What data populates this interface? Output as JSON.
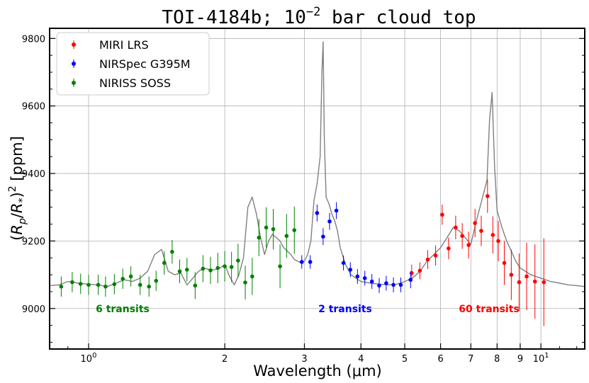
{
  "chart_data": {
    "type": "scatter",
    "title": "TOI-4184b; 10^-2 bar cloud top",
    "title_main": "TOI-4184b; 10",
    "title_exp": "−2",
    "title_tail": " bar cloud top",
    "xlabel": "Wavelength (μm)",
    "ylabel": "(Rp/R*)^2 [ppm]",
    "x_scale": "log",
    "xlim": [
      0.82,
      12.5
    ],
    "ylim": [
      8880,
      9830
    ],
    "x_ticks": [
      {
        "value": 1,
        "label": "10",
        "exp": "0"
      },
      {
        "value": 2,
        "label": "2"
      },
      {
        "value": 3,
        "label": "3"
      },
      {
        "value": 4,
        "label": "4"
      },
      {
        "value": 5,
        "label": "5"
      },
      {
        "value": 6,
        "label": "6"
      },
      {
        "value": 7,
        "label": "7"
      },
      {
        "value": 8,
        "label": "8"
      },
      {
        "value": 9,
        "label": "9"
      },
      {
        "value": 10,
        "label": "10",
        "exp": "1"
      }
    ],
    "y_ticks": [
      9000,
      9200,
      9400,
      9600,
      9800
    ],
    "grid": true,
    "legend_position": "top-left",
    "model": {
      "name": "model",
      "color": "#808080",
      "x": [
        0.82,
        0.86,
        0.9,
        0.95,
        1.0,
        1.05,
        1.1,
        1.15,
        1.2,
        1.25,
        1.3,
        1.35,
        1.4,
        1.45,
        1.5,
        1.55,
        1.6,
        1.65,
        1.7,
        1.75,
        1.8,
        1.85,
        1.9,
        1.95,
        2.0,
        2.05,
        2.1,
        2.15,
        2.2,
        2.25,
        2.3,
        2.35,
        2.4,
        2.45,
        2.5,
        2.55,
        2.6,
        2.65,
        2.7,
        2.75,
        2.8,
        2.85,
        2.9,
        2.95,
        3.0,
        3.05,
        3.1,
        3.15,
        3.2,
        3.25,
        3.28,
        3.3,
        3.32,
        3.35,
        3.4,
        3.45,
        3.5,
        3.55,
        3.6,
        3.7,
        3.8,
        3.9,
        4.0,
        4.2,
        4.4,
        4.6,
        4.8,
        5.0,
        5.2,
        5.4,
        5.6,
        5.8,
        6.0,
        6.2,
        6.4,
        6.6,
        6.8,
        7.0,
        7.2,
        7.4,
        7.6,
        7.7,
        7.8,
        7.9,
        8.0,
        8.2,
        8.4,
        8.6,
        8.8,
        9.0,
        9.5,
        10.0,
        10.5,
        11.0,
        11.5,
        12.0,
        12.5
      ],
      "y": [
        9068,
        9070,
        9080,
        9075,
        9072,
        9070,
        9065,
        9075,
        9085,
        9080,
        9090,
        9110,
        9160,
        9175,
        9110,
        9100,
        9105,
        9070,
        9090,
        9110,
        9120,
        9115,
        9115,
        9120,
        9130,
        9095,
        9070,
        9100,
        9150,
        9300,
        9330,
        9280,
        9210,
        9160,
        9200,
        9220,
        9210,
        9200,
        9180,
        9170,
        9160,
        9145,
        9140,
        9135,
        9140,
        9160,
        9200,
        9320,
        9370,
        9450,
        9700,
        9790,
        9500,
        9330,
        9310,
        9280,
        9260,
        9230,
        9180,
        9130,
        9100,
        9090,
        9080,
        9075,
        9072,
        9070,
        9072,
        9080,
        9090,
        9110,
        9140,
        9160,
        9180,
        9210,
        9240,
        9230,
        9210,
        9190,
        9260,
        9320,
        9380,
        9560,
        9640,
        9420,
        9290,
        9240,
        9200,
        9170,
        9140,
        9120,
        9100,
        9090,
        9080,
        9075,
        9070,
        9068,
        9065
      ]
    },
    "series": [
      {
        "name": "MIRI LRS",
        "color": "#ff0000",
        "annotation": "60 transits",
        "x": [
          5.18,
          5.4,
          5.62,
          5.85,
          6.05,
          6.25,
          6.48,
          6.7,
          6.92,
          7.15,
          7.38,
          7.62,
          7.83,
          8.05,
          8.3,
          8.6,
          8.95,
          9.3,
          9.7,
          10.15
        ],
        "y": [
          9105,
          9112,
          9145,
          9157,
          9278,
          9178,
          9240,
          9215,
          9188,
          9253,
          9230,
          9333,
          9218,
          9200,
          9135,
          9100,
          9078,
          9095,
          9080,
          9078
        ],
        "err": [
          25,
          25,
          28,
          30,
          30,
          32,
          35,
          38,
          40,
          42,
          45,
          50,
          55,
          60,
          65,
          75,
          85,
          100,
          110,
          130
        ]
      },
      {
        "name": "NIRSpec G395M",
        "color": "#0000ff",
        "annotation": "2 transits",
        "x": [
          2.96,
          3.09,
          3.2,
          3.3,
          3.41,
          3.53,
          3.66,
          3.79,
          3.93,
          4.08,
          4.23,
          4.39,
          4.55,
          4.72,
          4.9,
          5.15
        ],
        "y": [
          9138,
          9138,
          9283,
          9213,
          9258,
          9290,
          9135,
          9115,
          9095,
          9090,
          9080,
          9068,
          9075,
          9070,
          9070,
          9085
        ],
        "err": [
          20,
          20,
          25,
          25,
          25,
          25,
          22,
          22,
          22,
          22,
          22,
          22,
          22,
          22,
          22,
          25
        ]
      },
      {
        "name": "NIRISS SOSS",
        "color": "#008000",
        "annotation": "6 transits",
        "x": [
          0.87,
          0.92,
          0.96,
          1.0,
          1.05,
          1.09,
          1.14,
          1.19,
          1.24,
          1.3,
          1.36,
          1.41,
          1.47,
          1.53,
          1.59,
          1.65,
          1.72,
          1.79,
          1.86,
          1.93,
          2.0,
          2.07,
          2.14,
          2.22,
          2.3,
          2.38,
          2.47,
          2.56,
          2.65,
          2.74,
          2.85
        ],
        "y": [
          9065,
          9078,
          9073,
          9070,
          9070,
          9065,
          9072,
          9088,
          9095,
          9070,
          9065,
          9082,
          9135,
          9168,
          9110,
          9115,
          9068,
          9118,
          9113,
          9120,
          9125,
          9123,
          9142,
          9077,
          9095,
          9210,
          9240,
          9235,
          9125,
          9215,
          9232
        ],
        "err": [
          30,
          30,
          30,
          30,
          30,
          30,
          30,
          30,
          30,
          30,
          30,
          30,
          35,
          35,
          35,
          35,
          40,
          40,
          40,
          45,
          45,
          45,
          50,
          50,
          55,
          55,
          60,
          60,
          65,
          65,
          70
        ]
      }
    ]
  }
}
